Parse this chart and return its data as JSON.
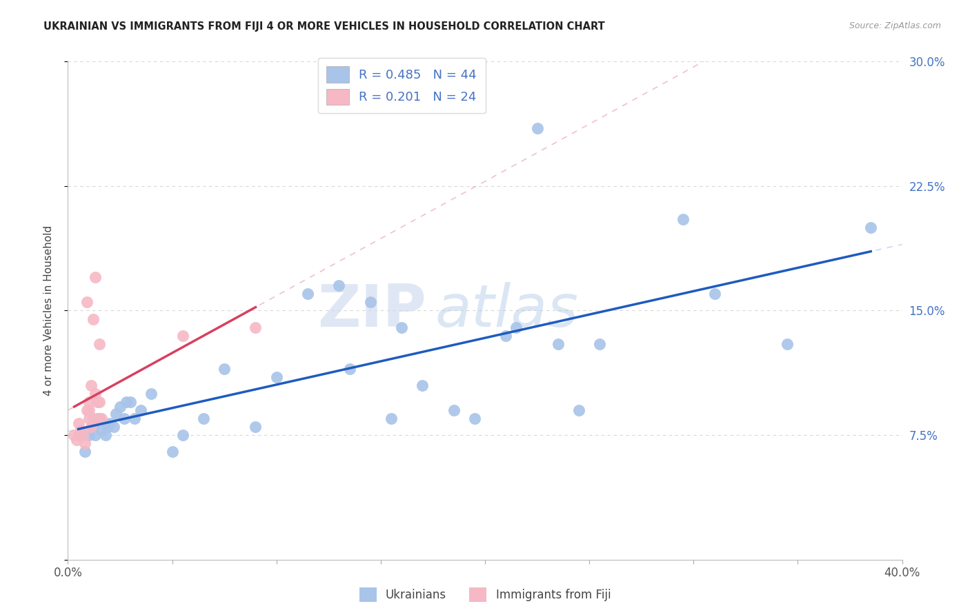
{
  "title": "UKRAINIAN VS IMMIGRANTS FROM FIJI 4 OR MORE VEHICLES IN HOUSEHOLD CORRELATION CHART",
  "source": "Source: ZipAtlas.com",
  "ylabel": "4 or more Vehicles in Household",
  "xmin": 0.0,
  "xmax": 0.4,
  "ymin": 0.0,
  "ymax": 0.3,
  "blue_scatter_x": [
    0.005,
    0.008,
    0.01,
    0.012,
    0.013,
    0.015,
    0.016,
    0.018,
    0.019,
    0.02,
    0.022,
    0.023,
    0.025,
    0.027,
    0.028,
    0.03,
    0.032,
    0.035,
    0.04,
    0.05,
    0.055,
    0.065,
    0.075,
    0.09,
    0.1,
    0.115,
    0.13,
    0.135,
    0.145,
    0.155,
    0.16,
    0.17,
    0.185,
    0.195,
    0.21,
    0.215,
    0.225,
    0.235,
    0.245,
    0.255,
    0.295,
    0.31,
    0.345,
    0.385
  ],
  "blue_scatter_y": [
    0.075,
    0.065,
    0.075,
    0.08,
    0.075,
    0.085,
    0.078,
    0.075,
    0.08,
    0.082,
    0.08,
    0.088,
    0.092,
    0.085,
    0.095,
    0.095,
    0.085,
    0.09,
    0.1,
    0.065,
    0.075,
    0.085,
    0.115,
    0.08,
    0.11,
    0.16,
    0.165,
    0.115,
    0.155,
    0.085,
    0.14,
    0.105,
    0.09,
    0.085,
    0.135,
    0.14,
    0.26,
    0.13,
    0.09,
    0.13,
    0.205,
    0.16,
    0.13,
    0.2
  ],
  "pink_scatter_x": [
    0.003,
    0.004,
    0.005,
    0.006,
    0.007,
    0.008,
    0.009,
    0.009,
    0.01,
    0.01,
    0.01,
    0.011,
    0.011,
    0.012,
    0.012,
    0.013,
    0.013,
    0.014,
    0.014,
    0.015,
    0.015,
    0.016,
    0.055,
    0.09
  ],
  "pink_scatter_y": [
    0.075,
    0.072,
    0.082,
    0.078,
    0.075,
    0.07,
    0.09,
    0.155,
    0.085,
    0.09,
    0.095,
    0.105,
    0.08,
    0.145,
    0.085,
    0.17,
    0.1,
    0.095,
    0.085,
    0.13,
    0.095,
    0.085,
    0.135,
    0.14
  ],
  "blue_R": 0.485,
  "blue_N": 44,
  "pink_R": 0.201,
  "pink_N": 24,
  "blue_color": "#a8c4e8",
  "pink_color": "#f5b8c4",
  "blue_line_color": "#1e5bbf",
  "pink_line_color": "#d84060",
  "blue_dash_color": "#c8d8f4",
  "pink_dash_color": "#f0c0cc",
  "watermark_zip": "ZIP",
  "watermark_atlas": "atlas",
  "legend_label_blue": "Ukrainians",
  "legend_label_pink": "Immigrants from Fiji",
  "background_color": "#ffffff",
  "grid_color": "#d8d8d8",
  "ytick_color": "#4472c4"
}
